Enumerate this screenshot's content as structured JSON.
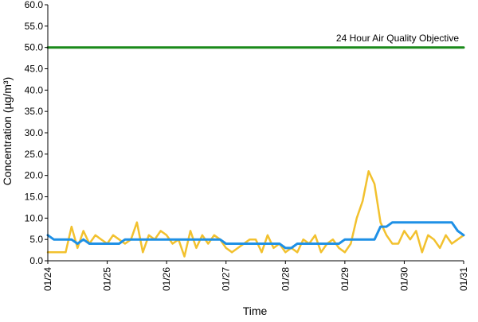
{
  "chart_data": {
    "type": "line",
    "title": "",
    "xlabel": "Time",
    "ylabel": "Concentration (µg/m³)",
    "ylim": [
      0,
      60
    ],
    "xlim": [
      "01/24",
      "01/31"
    ],
    "yticks": [
      "0.0",
      "5.0",
      "10.0",
      "15.0",
      "20.0",
      "25.0",
      "30.0",
      "35.0",
      "40.0",
      "45.0",
      "50.0",
      "55.0",
      "60.0"
    ],
    "xticks": [
      "01/24",
      "01/25",
      "01/26",
      "01/27",
      "01/28",
      "01/29",
      "01/30",
      "01/31"
    ],
    "grid": false,
    "legend": "none",
    "colors": {
      "hourly": "#F2C12E",
      "rolling_24h": "#1E90E6",
      "objective": "#1A8A1A"
    },
    "annotation": {
      "text": "24 Hour Air Quality Objective",
      "y": 50
    },
    "series": [
      {
        "x_days": [
          0,
          0.3,
          0.4,
          0.5,
          0.6,
          0.7,
          0.8,
          0.9,
          1.0,
          1.1,
          1.2,
          1.3,
          1.4,
          1.5,
          1.6,
          1.7,
          1.8,
          1.9,
          2.0,
          2.1,
          2.2,
          2.3,
          2.4,
          2.5,
          2.6,
          2.7,
          2.8,
          2.9,
          3.0,
          3.1,
          3.2,
          3.3,
          3.4,
          3.5,
          3.6,
          3.7,
          3.8,
          3.9,
          4.0,
          4.1,
          4.2,
          4.3,
          4.4,
          4.5,
          4.6,
          4.7,
          4.8,
          4.9,
          5.0,
          5.1,
          5.2,
          5.3,
          5.4,
          5.5,
          5.6,
          5.7,
          5.8,
          5.9,
          6.0,
          6.1,
          6.2,
          6.3,
          6.4,
          6.5,
          6.6,
          6.7,
          6.8,
          6.9,
          7.0
        ],
        "values": [
          2,
          2,
          8,
          3,
          7,
          4,
          6,
          5,
          4,
          6,
          5,
          4,
          5,
          9,
          2,
          6,
          5,
          7,
          6,
          4,
          5,
          1,
          7,
          3,
          6,
          4,
          6,
          5,
          3,
          2,
          3,
          4,
          5,
          5,
          2,
          6,
          3,
          4,
          2,
          3,
          2,
          5,
          4,
          6,
          2,
          4,
          5,
          3,
          2,
          4,
          10,
          14,
          21,
          18,
          9,
          6,
          4,
          4,
          7,
          5,
          7,
          2,
          6,
          5,
          3,
          6,
          4,
          5,
          6
        ]
      },
      {
        "x_days": [
          0,
          0.1,
          0.2,
          0.3,
          0.4,
          0.5,
          0.6,
          0.7,
          0.8,
          0.9,
          1.0,
          1.1,
          1.2,
          1.3,
          1.4,
          1.5,
          1.6,
          1.7,
          1.8,
          1.9,
          2.0,
          2.1,
          2.2,
          2.3,
          2.4,
          2.5,
          2.6,
          2.7,
          2.8,
          2.9,
          3.0,
          3.1,
          3.2,
          3.3,
          3.4,
          3.5,
          3.6,
          3.7,
          3.8,
          3.9,
          4.0,
          4.1,
          4.2,
          4.3,
          4.4,
          4.5,
          4.6,
          4.7,
          4.8,
          4.9,
          5.0,
          5.1,
          5.2,
          5.3,
          5.4,
          5.5,
          5.6,
          5.7,
          5.8,
          5.9,
          6.0,
          6.1,
          6.2,
          6.3,
          6.4,
          6.5,
          6.6,
          6.7,
          6.8,
          6.9,
          7.0
        ],
        "values": [
          6,
          5,
          5,
          5,
          5,
          4,
          5,
          4,
          4,
          4,
          4,
          4,
          4,
          5,
          5,
          5,
          5,
          5,
          5,
          5,
          5,
          5,
          5,
          5,
          5,
          5,
          5,
          5,
          5,
          5,
          4,
          4,
          4,
          4,
          4,
          4,
          4,
          4,
          4,
          4,
          3,
          3,
          4,
          4,
          4,
          4,
          4,
          4,
          4,
          4,
          5,
          5,
          5,
          5,
          5,
          5,
          8,
          8,
          9,
          9,
          9,
          9,
          9,
          9,
          9,
          9,
          9,
          9,
          9,
          7,
          6
        ]
      },
      {
        "x_days": [
          0,
          7
        ],
        "values": [
          50,
          50
        ]
      }
    ]
  }
}
